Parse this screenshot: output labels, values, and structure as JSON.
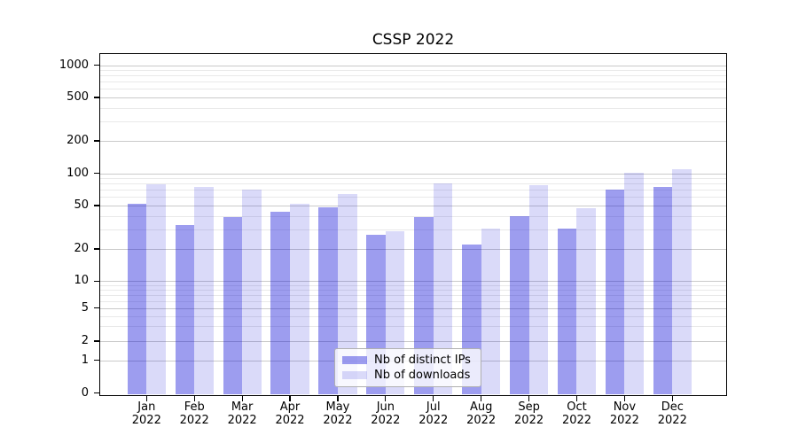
{
  "title": "CSSP 2022",
  "chart_data": {
    "type": "bar",
    "title": "CSSP 2022",
    "categories": [
      "Jan",
      "Feb",
      "Mar",
      "Apr",
      "May",
      "Jun",
      "Jul",
      "Aug",
      "Sep",
      "Oct",
      "Nov",
      "Dec"
    ],
    "year_label": "2022",
    "series": [
      {
        "name": "Nb of distinct IPs",
        "color": "rgba(10,10,215,0.4)",
        "color_hex_on_white": "#9d9def",
        "values": [
          52,
          33,
          39,
          44,
          48,
          27,
          39,
          22,
          40,
          31,
          70,
          75
        ]
      },
      {
        "name": "Nb of downloads",
        "color": "rgba(10,10,215,0.15)",
        "color_hex_on_white": "#dadaf9",
        "values": [
          79,
          74,
          71,
          52,
          64,
          29,
          80,
          31,
          78,
          47,
          102,
          109
        ]
      }
    ],
    "yscale": "log-like (compressed below 10, linear 0-1)",
    "yticks": [
      0,
      1,
      2,
      5,
      10,
      20,
      50,
      100,
      200,
      500,
      1000
    ],
    "yticks_minor": [
      3,
      4,
      6,
      7,
      8,
      9,
      30,
      40,
      60,
      70,
      80,
      90,
      300,
      400,
      600,
      700,
      800,
      900
    ],
    "ylim": [
      0,
      1300
    ],
    "xlabel": "",
    "ylabel": "",
    "grid": "horizontal major+minor",
    "legend_position": "lower center"
  }
}
